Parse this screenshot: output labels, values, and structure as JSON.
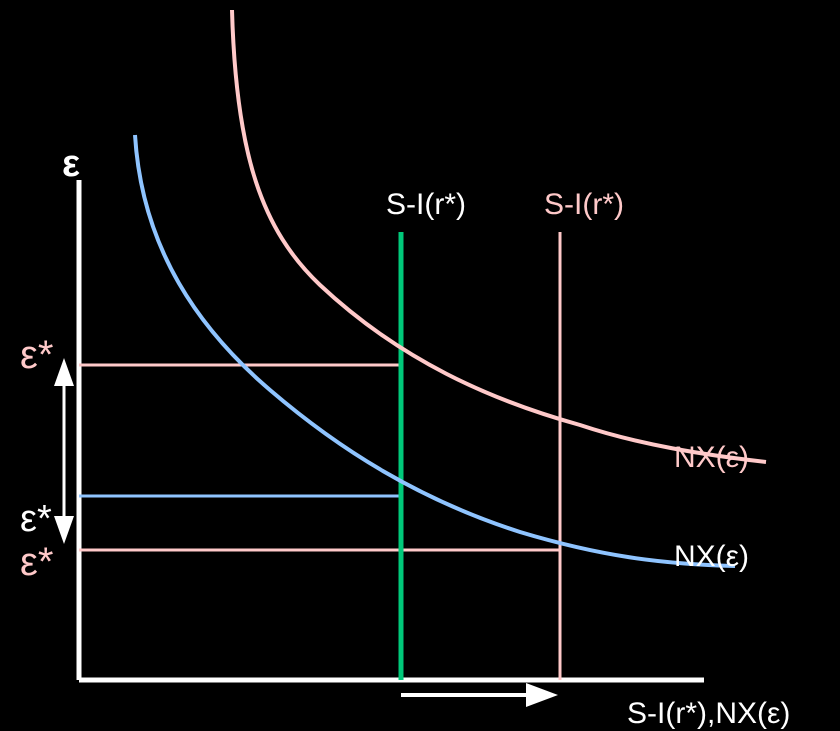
{
  "colors": {
    "background": "#000000",
    "axis": "#ffffff",
    "pink": "#ffc9c9",
    "blue": "#8fc4ff",
    "green": "#00c97a",
    "white": "#ffffff"
  },
  "axes": {
    "y_label": "ε",
    "x_label": "S-I(r*),NX(ε)"
  },
  "curves": {
    "nx_pink_label": "NX(ε)",
    "nx_blue_label": "NX(ε)"
  },
  "vertical_lines": {
    "green_label": "S-I(r*)",
    "pink_label": "S-I(r*)"
  },
  "equilibria": {
    "upper_pink_label": "ε*",
    "middle_white_label": "ε*",
    "lower_pink_label": "ε*"
  },
  "arrows": {
    "vertical": "double-headed vertical arrow beside ε* labels",
    "horizontal": "rightward arrow under x-axis"
  }
}
